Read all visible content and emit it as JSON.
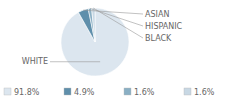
{
  "chart_data": {
    "type": "pie",
    "categories": [
      "WHITE",
      "ASIAN",
      "HISPANIC",
      "BLACK"
    ],
    "values": [
      91.8,
      4.9,
      1.6,
      1.6
    ],
    "value_labels": [
      "91.8%",
      "4.9%",
      "1.6%",
      "1.6%"
    ],
    "colors": [
      "#dce6ef",
      "#5f8fab",
      "#8aafc4",
      "#c8d8e4"
    ],
    "legend": "bottom"
  }
}
